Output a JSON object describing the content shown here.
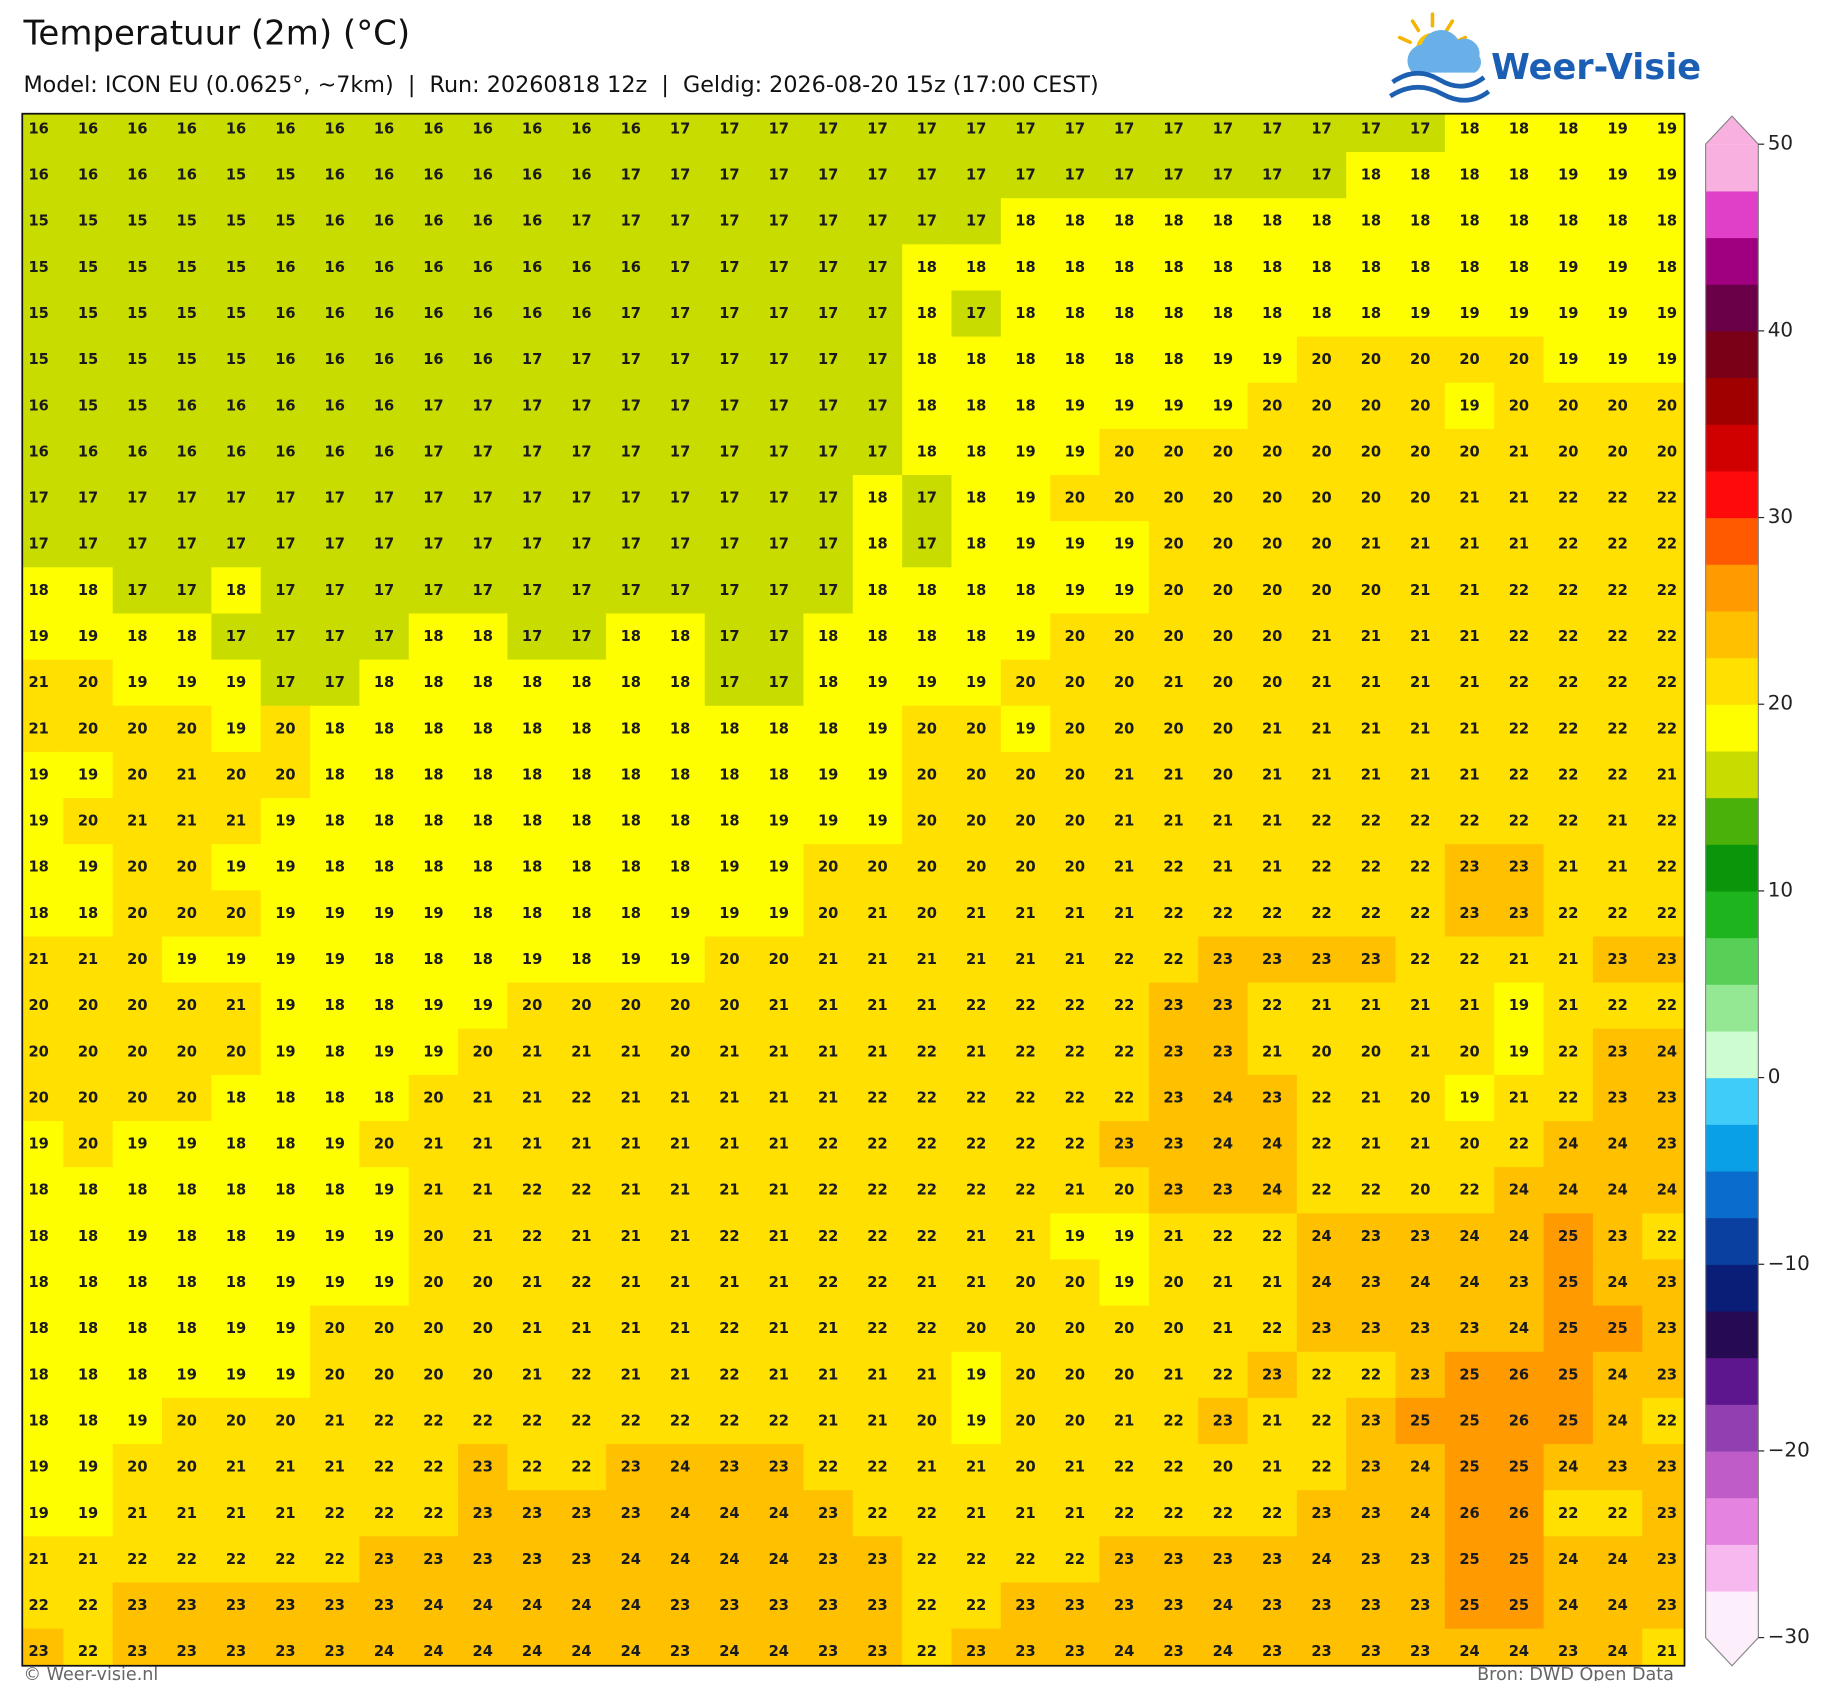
{
  "chart_data": {
    "type": "heatmap",
    "title": "Temperatuur (2m) (°C)",
    "subtitle": "Model: ICON EU (0.0625°, ~7km)  |  Run: 20260818 12z  |  Geldig: 2026-08-20 15z (17:00 CEST)",
    "brand": "Weer-Visie",
    "copyright": "© Weer-visie.nl",
    "source": "Bron: DWD Open Data",
    "values": [
      [
        16,
        16,
        16,
        16,
        16,
        16,
        16,
        16,
        16,
        16,
        16,
        16,
        16,
        17,
        17,
        17,
        17,
        17,
        17,
        17,
        17,
        17,
        17,
        17,
        17,
        17,
        17,
        17,
        17,
        18,
        18,
        18,
        19,
        19
      ],
      [
        16,
        16,
        16,
        16,
        15,
        15,
        16,
        16,
        16,
        16,
        16,
        16,
        17,
        17,
        17,
        17,
        17,
        17,
        17,
        17,
        17,
        17,
        17,
        17,
        17,
        17,
        17,
        18,
        18,
        18,
        18,
        19,
        19,
        19
      ],
      [
        15,
        15,
        15,
        15,
        15,
        15,
        16,
        16,
        16,
        16,
        16,
        17,
        17,
        17,
        17,
        17,
        17,
        17,
        17,
        17,
        18,
        18,
        18,
        18,
        18,
        18,
        18,
        18,
        18,
        18,
        18,
        18,
        18,
        18
      ],
      [
        15,
        15,
        15,
        15,
        15,
        16,
        16,
        16,
        16,
        16,
        16,
        16,
        16,
        17,
        17,
        17,
        17,
        17,
        18,
        18,
        18,
        18,
        18,
        18,
        18,
        18,
        18,
        18,
        18,
        18,
        18,
        19,
        19,
        18
      ],
      [
        15,
        15,
        15,
        15,
        15,
        16,
        16,
        16,
        16,
        16,
        16,
        16,
        17,
        17,
        17,
        17,
        17,
        17,
        18,
        17,
        18,
        18,
        18,
        18,
        18,
        18,
        18,
        18,
        19,
        19,
        19,
        19,
        19,
        19
      ],
      [
        15,
        15,
        15,
        15,
        15,
        16,
        16,
        16,
        16,
        16,
        17,
        17,
        17,
        17,
        17,
        17,
        17,
        17,
        18,
        18,
        18,
        18,
        18,
        18,
        19,
        19,
        20,
        20,
        20,
        20,
        20,
        19,
        19,
        19
      ],
      [
        16,
        15,
        15,
        16,
        16,
        16,
        16,
        16,
        17,
        17,
        17,
        17,
        17,
        17,
        17,
        17,
        17,
        17,
        18,
        18,
        18,
        19,
        19,
        19,
        19,
        20,
        20,
        20,
        20,
        19,
        20,
        20,
        20,
        20
      ],
      [
        16,
        16,
        16,
        16,
        16,
        16,
        16,
        16,
        17,
        17,
        17,
        17,
        17,
        17,
        17,
        17,
        17,
        17,
        18,
        18,
        19,
        19,
        20,
        20,
        20,
        20,
        20,
        20,
        20,
        20,
        21,
        20,
        20,
        20
      ],
      [
        17,
        17,
        17,
        17,
        17,
        17,
        17,
        17,
        17,
        17,
        17,
        17,
        17,
        17,
        17,
        17,
        17,
        18,
        17,
        18,
        19,
        20,
        20,
        20,
        20,
        20,
        20,
        20,
        20,
        21,
        21,
        22,
        22,
        22
      ],
      [
        17,
        17,
        17,
        17,
        17,
        17,
        17,
        17,
        17,
        17,
        17,
        17,
        17,
        17,
        17,
        17,
        17,
        18,
        17,
        18,
        19,
        19,
        19,
        20,
        20,
        20,
        20,
        21,
        21,
        21,
        21,
        22,
        22,
        22
      ],
      [
        18,
        18,
        17,
        17,
        18,
        17,
        17,
        17,
        17,
        17,
        17,
        17,
        17,
        17,
        17,
        17,
        17,
        18,
        18,
        18,
        18,
        19,
        19,
        20,
        20,
        20,
        20,
        20,
        21,
        21,
        22,
        22,
        22,
        22
      ],
      [
        19,
        19,
        18,
        18,
        17,
        17,
        17,
        17,
        18,
        18,
        17,
        17,
        18,
        18,
        17,
        17,
        18,
        18,
        18,
        18,
        19,
        20,
        20,
        20,
        20,
        20,
        21,
        21,
        21,
        21,
        22,
        22,
        22,
        22
      ],
      [
        21,
        20,
        19,
        19,
        19,
        17,
        17,
        18,
        18,
        18,
        18,
        18,
        18,
        18,
        17,
        17,
        18,
        19,
        19,
        19,
        20,
        20,
        20,
        21,
        20,
        20,
        21,
        21,
        21,
        21,
        22,
        22,
        22,
        22
      ],
      [
        21,
        20,
        20,
        20,
        19,
        20,
        18,
        18,
        18,
        18,
        18,
        18,
        18,
        18,
        18,
        18,
        18,
        19,
        20,
        20,
        19,
        20,
        20,
        20,
        20,
        21,
        21,
        21,
        21,
        21,
        22,
        22,
        22,
        22
      ],
      [
        19,
        19,
        20,
        21,
        20,
        20,
        18,
        18,
        18,
        18,
        18,
        18,
        18,
        18,
        18,
        18,
        19,
        19,
        20,
        20,
        20,
        20,
        21,
        21,
        20,
        21,
        21,
        21,
        21,
        21,
        22,
        22,
        22,
        21
      ],
      [
        19,
        20,
        21,
        21,
        21,
        19,
        18,
        18,
        18,
        18,
        18,
        18,
        18,
        18,
        18,
        19,
        19,
        19,
        20,
        20,
        20,
        20,
        21,
        21,
        21,
        21,
        22,
        22,
        22,
        22,
        22,
        22,
        21,
        22
      ],
      [
        18,
        19,
        20,
        20,
        19,
        19,
        18,
        18,
        18,
        18,
        18,
        18,
        18,
        18,
        19,
        19,
        20,
        20,
        20,
        20,
        20,
        20,
        21,
        22,
        21,
        21,
        22,
        22,
        22,
        23,
        23,
        21,
        21,
        22
      ],
      [
        18,
        18,
        20,
        20,
        20,
        19,
        19,
        19,
        19,
        18,
        18,
        18,
        18,
        19,
        19,
        19,
        20,
        21,
        20,
        21,
        21,
        21,
        21,
        22,
        22,
        22,
        22,
        22,
        22,
        23,
        23,
        22,
        22,
        22
      ],
      [
        21,
        21,
        20,
        19,
        19,
        19,
        19,
        18,
        18,
        18,
        19,
        18,
        19,
        19,
        20,
        20,
        21,
        21,
        21,
        21,
        21,
        21,
        22,
        22,
        23,
        23,
        23,
        23,
        22,
        22,
        21,
        21,
        23,
        23
      ],
      [
        20,
        20,
        20,
        20,
        21,
        19,
        18,
        18,
        19,
        19,
        20,
        20,
        20,
        20,
        20,
        21,
        21,
        21,
        21,
        22,
        22,
        22,
        22,
        23,
        23,
        22,
        21,
        21,
        21,
        21,
        19,
        21,
        22,
        22
      ],
      [
        20,
        20,
        20,
        20,
        20,
        19,
        18,
        19,
        19,
        20,
        21,
        21,
        21,
        20,
        21,
        21,
        21,
        21,
        22,
        21,
        22,
        22,
        22,
        23,
        23,
        21,
        20,
        20,
        21,
        20,
        19,
        22,
        23,
        24
      ],
      [
        20,
        20,
        20,
        20,
        18,
        18,
        18,
        18,
        20,
        21,
        21,
        22,
        21,
        21,
        21,
        21,
        21,
        22,
        22,
        22,
        22,
        22,
        22,
        23,
        24,
        23,
        22,
        21,
        20,
        19,
        21,
        22,
        23,
        23
      ],
      [
        19,
        20,
        19,
        19,
        18,
        18,
        19,
        20,
        21,
        21,
        21,
        21,
        21,
        21,
        21,
        21,
        22,
        22,
        22,
        22,
        22,
        22,
        23,
        23,
        24,
        24,
        22,
        21,
        21,
        20,
        22,
        24,
        24,
        23
      ],
      [
        18,
        18,
        18,
        18,
        18,
        18,
        18,
        19,
        21,
        21,
        22,
        22,
        21,
        21,
        21,
        21,
        22,
        22,
        22,
        22,
        22,
        21,
        20,
        23,
        23,
        24,
        22,
        22,
        20,
        22,
        24,
        24,
        24,
        24
      ],
      [
        18,
        18,
        19,
        18,
        18,
        19,
        19,
        19,
        20,
        21,
        22,
        21,
        21,
        21,
        22,
        21,
        22,
        22,
        22,
        21,
        21,
        19,
        19,
        21,
        22,
        22,
        24,
        23,
        23,
        24,
        24,
        25,
        23,
        22
      ],
      [
        18,
        18,
        18,
        18,
        18,
        19,
        19,
        19,
        20,
        20,
        21,
        22,
        21,
        21,
        21,
        21,
        22,
        22,
        21,
        21,
        20,
        20,
        19,
        20,
        21,
        21,
        24,
        23,
        24,
        24,
        23,
        25,
        24,
        23
      ],
      [
        18,
        18,
        18,
        18,
        19,
        19,
        20,
        20,
        20,
        20,
        21,
        21,
        21,
        21,
        22,
        21,
        21,
        22,
        22,
        20,
        20,
        20,
        20,
        20,
        21,
        22,
        23,
        23,
        23,
        23,
        24,
        25,
        25,
        23
      ],
      [
        18,
        18,
        18,
        19,
        19,
        19,
        20,
        20,
        20,
        20,
        21,
        22,
        21,
        21,
        22,
        21,
        21,
        21,
        21,
        19,
        20,
        20,
        20,
        21,
        22,
        23,
        22,
        22,
        23,
        25,
        26,
        25,
        24,
        23
      ],
      [
        18,
        18,
        19,
        20,
        20,
        20,
        21,
        22,
        22,
        22,
        22,
        22,
        22,
        22,
        22,
        22,
        21,
        21,
        20,
        19,
        20,
        20,
        21,
        22,
        23,
        21,
        22,
        23,
        25,
        25,
        26,
        25,
        24,
        22
      ],
      [
        19,
        19,
        20,
        20,
        21,
        21,
        21,
        22,
        22,
        23,
        22,
        22,
        23,
        24,
        23,
        23,
        22,
        22,
        21,
        21,
        20,
        21,
        22,
        22,
        20,
        21,
        22,
        23,
        24,
        25,
        25,
        24,
        23,
        23
      ],
      [
        19,
        19,
        21,
        21,
        21,
        21,
        22,
        22,
        22,
        23,
        23,
        23,
        23,
        24,
        24,
        24,
        23,
        22,
        22,
        21,
        21,
        21,
        22,
        22,
        22,
        22,
        23,
        23,
        24,
        26,
        26,
        22,
        22,
        23
      ],
      [
        21,
        21,
        22,
        22,
        22,
        22,
        22,
        23,
        23,
        23,
        23,
        23,
        24,
        24,
        24,
        24,
        23,
        23,
        22,
        22,
        22,
        22,
        23,
        23,
        23,
        23,
        24,
        23,
        23,
        25,
        25,
        24,
        24,
        23
      ],
      [
        22,
        22,
        23,
        23,
        23,
        23,
        23,
        23,
        24,
        24,
        24,
        24,
        24,
        23,
        23,
        23,
        23,
        23,
        22,
        22,
        23,
        23,
        23,
        23,
        24,
        23,
        23,
        23,
        23,
        25,
        25,
        24,
        24,
        23
      ],
      [
        23,
        22,
        23,
        23,
        23,
        23,
        23,
        24,
        24,
        24,
        24,
        24,
        24,
        23,
        24,
        24,
        23,
        23,
        22,
        23,
        23,
        23,
        24,
        23,
        24,
        23,
        23,
        23,
        23,
        24,
        24,
        23,
        24,
        21
      ]
    ],
    "colorbar": {
      "lim": [
        -30,
        50
      ],
      "ticks": [
        50,
        40,
        30,
        20,
        10,
        0,
        {
          "value": -10,
          "label": "−10"
        },
        {
          "value": -20,
          "label": "−20"
        },
        {
          "value": -30,
          "label": "−30"
        }
      ],
      "colors": [
        "#fdeefb",
        "#f6b8ee",
        "#e484e0",
        "#c05cc8",
        "#9040b0",
        "#5e168e",
        "#260a52",
        "#0a1e78",
        "#0a40a0",
        "#0a6ccc",
        "#0aa0e8",
        "#40ccf8",
        "#ccfcd0",
        "#94e894",
        "#58d058",
        "#1eb41e",
        "#0a960a",
        "#4ab00a",
        "#c8dc00",
        "#fefe00",
        "#ffe000",
        "#ffc000",
        "#ff9a00",
        "#ff5a00",
        "#ff0a0a",
        "#d00000",
        "#a00000",
        "#7a0018",
        "#6a0048",
        "#a00080",
        "#e040c8",
        "#f8b0e0"
      ]
    }
  }
}
